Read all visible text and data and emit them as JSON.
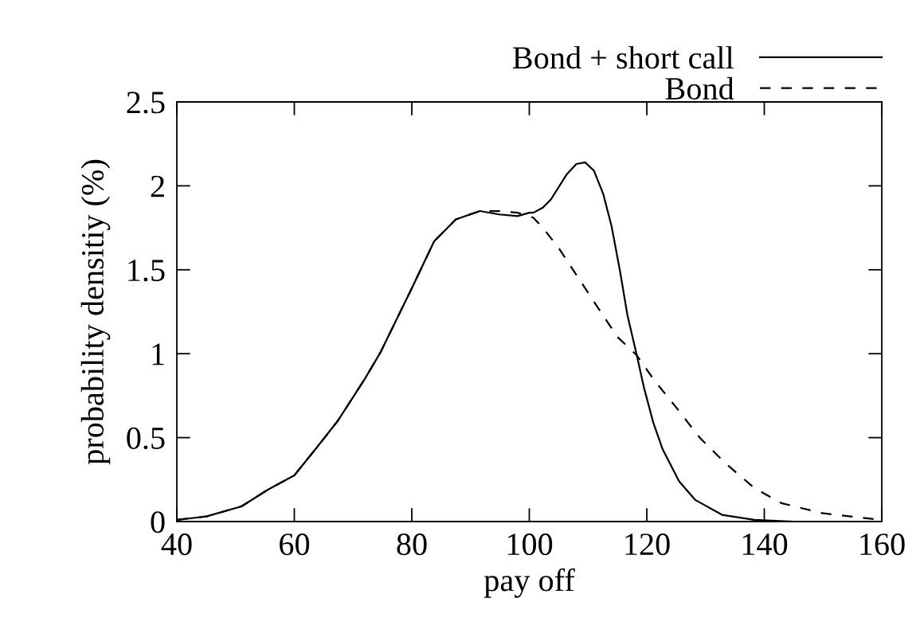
{
  "chart_data": {
    "type": "line",
    "xlabel": "pay off",
    "ylabel": "probability densitiy (%)",
    "xlim": [
      40,
      160
    ],
    "ylim": [
      0,
      2.5
    ],
    "xticks": [
      40,
      60,
      80,
      100,
      120,
      140,
      160
    ],
    "yticks": [
      0,
      0.5,
      1,
      1.5,
      2,
      2.5
    ],
    "grid": false,
    "legend": "top right",
    "marker": "none",
    "series": [
      {
        "name": "Bond + short call",
        "color": "#000000",
        "line_style": "solid",
        "x": [
          40,
          45,
          51,
          55.5,
          60,
          63.8,
          67.4,
          72,
          74.7,
          80,
          83.8,
          87.5,
          91.6,
          94.8,
          98,
          100,
          100.7,
          102.3,
          103.7,
          106.4,
          108,
          109.5,
          111,
          112.6,
          114,
          115.4,
          116.7,
          118.3,
          119.5,
          121.1,
          122.7,
          125.5,
          128.2,
          132.8,
          138.3,
          145,
          160
        ],
        "values": [
          0.01,
          0.03,
          0.09,
          0.19,
          0.275,
          0.44,
          0.6,
          0.85,
          1.01,
          1.39,
          1.67,
          1.8,
          1.85,
          1.83,
          1.82,
          1.84,
          1.84,
          1.87,
          1.92,
          2.07,
          2.13,
          2.14,
          2.09,
          1.95,
          1.76,
          1.5,
          1.23,
          0.99,
          0.8,
          0.59,
          0.43,
          0.24,
          0.13,
          0.04,
          0.01,
          0,
          0
        ]
      },
      {
        "name": "Bond",
        "color": "#000000",
        "line_style": "dashed",
        "x": [
          40,
          45,
          51,
          55.5,
          60,
          63.8,
          67.4,
          72,
          74.7,
          80,
          83.8,
          87.5,
          91.6,
          94.8,
          98,
          100.7,
          102.3,
          105,
          108,
          111,
          115,
          118.3,
          121.3,
          125,
          129,
          133.3,
          138.3,
          142.9,
          149.8,
          159,
          160
        ],
        "values": [
          0.01,
          0.03,
          0.09,
          0.19,
          0.275,
          0.44,
          0.6,
          0.85,
          1.01,
          1.39,
          1.67,
          1.8,
          1.85,
          1.85,
          1.84,
          1.81,
          1.75,
          1.63,
          1.47,
          1.31,
          1.1,
          0.99,
          0.84,
          0.68,
          0.5,
          0.35,
          0.2,
          0.11,
          0.05,
          0.013,
          0.01
        ]
      }
    ]
  }
}
